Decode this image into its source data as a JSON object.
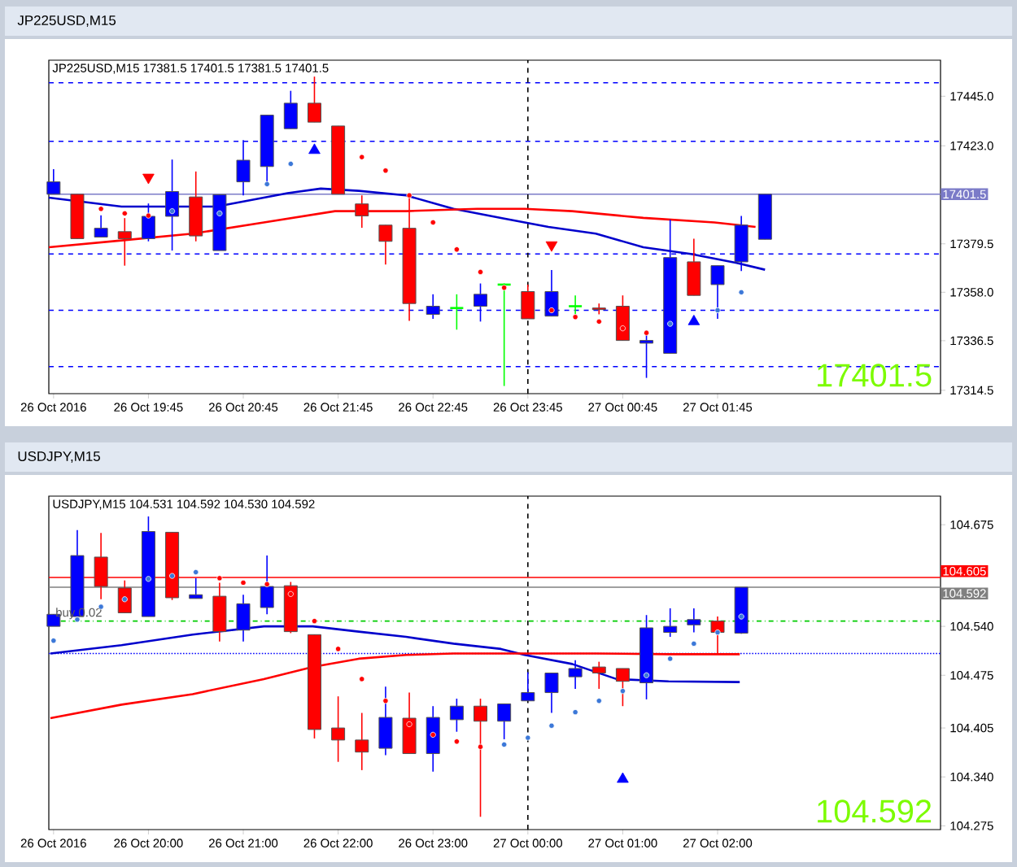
{
  "chart_data": [
    {
      "type": "candlestick",
      "title": "JP225USD,M15",
      "subtitle": "JP225USD,M15 17381.5 17401.5 17381.5 17401.5",
      "x": [
        "2016-10-26T18:45",
        "2016-10-26T19:00",
        "2016-10-26T19:15",
        "2016-10-26T19:30",
        "2016-10-26T19:45",
        "2016-10-26T20:00",
        "2016-10-26T20:15",
        "2016-10-26T20:30",
        "2016-10-26T20:45",
        "2016-10-26T21:00",
        "2016-10-26T21:15",
        "2016-10-26T21:30",
        "2016-10-26T21:45",
        "2016-10-26T22:00",
        "2016-10-26T22:15",
        "2016-10-26T22:30",
        "2016-10-26T22:45",
        "2016-10-26T23:00",
        "2016-10-26T23:15",
        "2016-10-26T23:30",
        "2016-10-26T23:45",
        "2016-10-27T00:00",
        "2016-10-27T00:15",
        "2016-10-27T00:30",
        "2016-10-27T00:45",
        "2016-10-27T01:00",
        "2016-10-27T01:15",
        "2016-10-27T01:30",
        "2016-10-27T01:45",
        "2016-10-27T02:00",
        "2016-10-27T02:15"
      ],
      "ohlc": [
        [
          17401.5,
          17412.6,
          17401.5,
          17407.0
        ],
        [
          17401.5,
          17401.5,
          17381.8,
          17381.8
        ],
        [
          17382.5,
          17392.1,
          17382.5,
          17386.4
        ],
        [
          17384.9,
          17390.9,
          17369.8,
          17381.8
        ],
        [
          17381.8,
          17397.4,
          17380.6,
          17391.7
        ],
        [
          17391.7,
          17416.9,
          17376.5,
          17402.7
        ],
        [
          17400.3,
          17411.6,
          17380.6,
          17383.0
        ],
        [
          17376.5,
          17401.3,
          17376.5,
          17401.3
        ],
        [
          17407.0,
          17425.5,
          17401.0,
          17416.6
        ],
        [
          17413.8,
          17436.6,
          17405.8,
          17436.6
        ],
        [
          17430.6,
          17447.4,
          17430.6,
          17441.9
        ],
        [
          17441.9,
          17453.7,
          17433.5,
          17433.5
        ],
        [
          17431.8,
          17431.8,
          17401.5,
          17401.5
        ],
        [
          17397.2,
          17401.0,
          17386.6,
          17391.9
        ],
        [
          17387.8,
          17387.8,
          17370.3,
          17380.6
        ],
        [
          17386.4,
          17401.0,
          17345.3,
          17353.0
        ],
        [
          17348.2,
          17357.1,
          17346.2,
          17351.8
        ],
        [
          17351.0,
          17357.1,
          17341.4,
          17351.0
        ],
        [
          17351.8,
          17361.9,
          17345.0,
          17357.1
        ],
        [
          17361.4,
          17361.9,
          17316.4,
          17361.4
        ],
        [
          17358.3,
          17361.4,
          17346.2,
          17346.2
        ],
        [
          17347.4,
          17367.9,
          17347.4,
          17358.3
        ],
        [
          17351.8,
          17356.6,
          17348.2,
          17351.8
        ],
        [
          17351.0,
          17353.0,
          17348.2,
          17350.3
        ],
        [
          17351.8,
          17356.6,
          17336.6,
          17336.6
        ],
        [
          17335.4,
          17341.0,
          17320.0,
          17336.6
        ],
        [
          17330.9,
          17390.2,
          17330.9,
          17373.4
        ],
        [
          17371.5,
          17381.8,
          17356.6,
          17356.6
        ],
        [
          17361.4,
          17369.8,
          17346.2,
          17369.8
        ],
        [
          17371.5,
          17391.9,
          17367.4,
          17387.8
        ],
        [
          17381.5,
          17401.5,
          17381.5,
          17401.5
        ]
      ],
      "colors": [
        "#0000ff",
        "#ff0000",
        "#0000ff",
        "#ff0000",
        "#0000ff",
        "#0000ff",
        "#ff0000",
        "#0000ff",
        "#0000ff",
        "#0000ff",
        "#0000ff",
        "#ff0000",
        "#ff0000",
        "#ff0000",
        "#ff0000",
        "#ff0000",
        "#0000ff",
        "#00ff00",
        "#0000ff",
        "#00ff00",
        "#ff0000",
        "#0000ff",
        "#00ff00",
        "#ff0000",
        "#ff0000",
        "#0000ff",
        "#0000ff",
        "#ff0000",
        "#0000ff",
        "#0000ff",
        "#0000ff"
      ],
      "series": [
        {
          "type": "line",
          "color": "#0000cc",
          "x": [
            "2016-10-26T18:42",
            "2016-10-26T19:28",
            "2016-10-26T19:58",
            "2016-10-26T20:28",
            "2016-10-26T20:43",
            "2016-10-26T21:13",
            "2016-10-26T21:34",
            "2016-10-26T21:58",
            "2016-10-26T22:28",
            "2016-10-26T22:58",
            "2016-10-26T23:28",
            "2016-10-26T23:58",
            "2016-10-27T00:28",
            "2016-10-27T00:58",
            "2016-10-27T01:28",
            "2016-10-27T01:57",
            "2016-10-27T02:15"
          ],
          "values": [
            17400,
            17396,
            17396,
            17396,
            17398,
            17402,
            17404,
            17403,
            17401,
            17395,
            17391,
            17387,
            17384,
            17378,
            17375,
            17371,
            17368
          ]
        },
        {
          "type": "line",
          "color": "#ff0000",
          "x": [
            "2016-10-26T18:42",
            "2016-10-26T19:28",
            "2016-10-26T20:13",
            "2016-10-26T20:58",
            "2016-10-26T21:43",
            "2016-10-26T22:28",
            "2016-10-26T23:13",
            "2016-10-26T23:43",
            "2016-10-27T00:13",
            "2016-10-27T00:58",
            "2016-10-27T01:43",
            "2016-10-27T02:09"
          ],
          "values": [
            17378,
            17381,
            17384,
            17389,
            17394,
            17394,
            17395,
            17395,
            17394,
            17391,
            17389,
            17387
          ]
        },
        {
          "type": "scatter",
          "marker": "circle",
          "color": "#3c78d8",
          "x": [
            "2016-10-26T20:00",
            "2016-10-26T20:30",
            "2016-10-26T21:00",
            "2016-10-26T21:15",
            "2016-10-27T01:15",
            "2016-10-27T01:45",
            "2016-10-27T02:00"
          ],
          "values": [
            17394,
            17393,
            17406,
            17415,
            17344,
            17350,
            17358
          ]
        },
        {
          "type": "scatter",
          "marker": "circle",
          "color": "#ff0000",
          "x": [
            "2016-10-26T19:15",
            "2016-10-26T19:30",
            "2016-10-26T19:45",
            "2016-10-26T22:00",
            "2016-10-26T22:15",
            "2016-10-26T22:30",
            "2016-10-26T22:45",
            "2016-10-26T23:00",
            "2016-10-26T23:15",
            "2016-10-26T23:30",
            "2016-10-27T00:00",
            "2016-10-27T00:15",
            "2016-10-27T00:30",
            "2016-10-27T00:45",
            "2016-10-27T01:00"
          ],
          "values": [
            17395,
            17393,
            17392,
            17418,
            17412,
            17401,
            17389,
            17377,
            17367,
            17360,
            17350,
            17347,
            17345,
            17342,
            17340
          ]
        },
        {
          "type": "scatter",
          "marker": "triangle",
          "color": "#ff0000",
          "x": [
            "2016-10-26T19:45",
            "2016-10-27T00:00"
          ],
          "values": [
            17409,
            17379
          ]
        },
        {
          "type": "scatter",
          "marker": "triangle",
          "color": "#0000ff",
          "x": [
            "2016-10-26T21:30",
            "2016-10-27T01:30"
          ],
          "values": [
            17421,
            17345
          ]
        }
      ],
      "ref_lines": [
        {
          "axis": "y",
          "value": 17401.5,
          "label": "17401.5",
          "color": "#7b7bc8"
        },
        {
          "axis": "y",
          "value": 17451,
          "color": "#0000ff",
          "line_style": "dashed"
        },
        {
          "axis": "y",
          "value": 17425,
          "color": "#0000ff",
          "line_style": "dashed"
        },
        {
          "axis": "y",
          "value": 17375,
          "color": "#0000ff",
          "line_style": "dashed"
        },
        {
          "axis": "y",
          "value": 17350,
          "color": "#0000ff",
          "line_style": "dashed"
        },
        {
          "axis": "y",
          "value": 17325,
          "color": "#0000ff",
          "line_style": "dashed"
        },
        {
          "axis": "x",
          "value": "2016-10-26T23:45",
          "color": "#000000",
          "line_style": "dashed"
        }
      ],
      "annotations": [
        "17401.5"
      ],
      "xlim": [
        "2016-10-26T18:42",
        "2016-10-27T04:06"
      ],
      "ylim": [
        17313,
        17461
      ],
      "xticks": [
        {
          "value": "2016-10-26T18:45",
          "label": "26 Oct 2016"
        },
        {
          "value": "2016-10-26T19:45",
          "label": "26 Oct 19:45"
        },
        {
          "value": "2016-10-26T20:45",
          "label": "26 Oct 20:45"
        },
        {
          "value": "2016-10-26T21:45",
          "label": "26 Oct 21:45"
        },
        {
          "value": "2016-10-26T22:45",
          "label": "26 Oct 22:45"
        },
        {
          "value": "2016-10-26T23:45",
          "label": "26 Oct 23:45"
        },
        {
          "value": "2016-10-27T00:45",
          "label": "27 Oct 00:45"
        },
        {
          "value": "2016-10-27T01:45",
          "label": "27 Oct 01:45"
        }
      ],
      "yticks": [
        {
          "value": 17445.0,
          "label": "17445.0"
        },
        {
          "value": 17423.0,
          "label": "17423.0"
        },
        {
          "value": 17379.5,
          "label": "17379.5"
        },
        {
          "value": 17358.0,
          "label": "17358.0"
        },
        {
          "value": 17336.5,
          "label": "17336.5"
        },
        {
          "value": 17314.5,
          "label": "17314.5"
        }
      ]
    },
    {
      "type": "candlestick",
      "title": "USDJPY,M15",
      "subtitle": "USDJPY,M15 104.531 104.592 104.530 104.592",
      "x": [
        "2016-10-26T19:00",
        "2016-10-26T19:15",
        "2016-10-26T19:30",
        "2016-10-26T19:45",
        "2016-10-26T20:00",
        "2016-10-26T20:15",
        "2016-10-26T20:30",
        "2016-10-26T20:45",
        "2016-10-26T21:00",
        "2016-10-26T21:15",
        "2016-10-26T21:30",
        "2016-10-26T21:45",
        "2016-10-26T22:00",
        "2016-10-26T22:15",
        "2016-10-26T22:30",
        "2016-10-26T22:45",
        "2016-10-26T23:00",
        "2016-10-26T23:15",
        "2016-10-26T23:30",
        "2016-10-26T23:45",
        "2016-10-27T00:00",
        "2016-10-27T00:15",
        "2016-10-27T00:30",
        "2016-10-27T00:45",
        "2016-10-27T01:00",
        "2016-10-27T01:15",
        "2016-10-27T01:30",
        "2016-10-27T01:45",
        "2016-10-27T02:00",
        "2016-10-27T02:15"
      ],
      "ohlc": [
        [
          104.54,
          104.556,
          104.54,
          104.556
        ],
        [
          104.553,
          104.668,
          104.553,
          104.634
        ],
        [
          104.632,
          104.664,
          104.576,
          104.593
        ],
        [
          104.591,
          104.601,
          104.558,
          104.558
        ],
        [
          104.553,
          104.686,
          104.553,
          104.666
        ],
        [
          104.665,
          104.665,
          104.575,
          104.578
        ],
        [
          104.577,
          104.604,
          104.577,
          104.582
        ],
        [
          104.58,
          104.598,
          104.52,
          104.533
        ],
        [
          104.535,
          104.582,
          104.52,
          104.57
        ],
        [
          104.565,
          104.634,
          104.556,
          104.593
        ],
        [
          104.594,
          104.599,
          104.531,
          104.533
        ],
        [
          104.529,
          104.529,
          104.391,
          104.403
        ],
        [
          104.405,
          104.447,
          104.36,
          104.389
        ],
        [
          104.389,
          104.425,
          104.349,
          104.373
        ],
        [
          104.378,
          104.46,
          104.369,
          104.419
        ],
        [
          104.418,
          104.452,
          104.371,
          104.371
        ],
        [
          104.371,
          104.434,
          104.347,
          104.419
        ],
        [
          104.416,
          104.444,
          104.4,
          104.434
        ],
        [
          104.434,
          104.444,
          104.287,
          104.414
        ],
        [
          104.414,
          104.437,
          104.39,
          104.437
        ],
        [
          104.441,
          104.479,
          104.441,
          104.452
        ],
        [
          104.452,
          104.478,
          104.425,
          104.478
        ],
        [
          104.473,
          104.495,
          104.457,
          104.484
        ],
        [
          104.486,
          104.493,
          104.457,
          104.478
        ],
        [
          104.484,
          104.484,
          104.434,
          104.467
        ],
        [
          104.465,
          104.555,
          104.443,
          104.538
        ],
        [
          104.532,
          104.564,
          104.526,
          104.54
        ],
        [
          104.542,
          104.564,
          104.532,
          104.549
        ],
        [
          104.547,
          104.553,
          104.504,
          104.532
        ],
        [
          104.531,
          104.592,
          104.53,
          104.592
        ]
      ],
      "colors": [
        "#0000ff",
        "#0000ff",
        "#ff0000",
        "#ff0000",
        "#0000ff",
        "#ff0000",
        "#0000ff",
        "#ff0000",
        "#0000ff",
        "#0000ff",
        "#ff0000",
        "#ff0000",
        "#ff0000",
        "#ff0000",
        "#0000ff",
        "#ff0000",
        "#0000ff",
        "#0000ff",
        "#ff0000",
        "#0000ff",
        "#0000ff",
        "#0000ff",
        "#0000ff",
        "#ff0000",
        "#ff0000",
        "#0000ff",
        "#0000ff",
        "#0000ff",
        "#ff0000",
        "#0000ff"
      ],
      "series": [
        {
          "type": "line",
          "color": "#0000cc",
          "x": [
            "2016-10-26T18:58",
            "2016-10-26T19:43",
            "2016-10-26T20:28",
            "2016-10-26T21:13",
            "2016-10-26T21:44",
            "2016-10-26T22:13",
            "2016-10-26T22:43",
            "2016-10-26T23:13",
            "2016-10-26T23:43",
            "2016-10-26T23:58",
            "2016-10-27T00:28",
            "2016-10-27T00:56",
            "2016-10-27T01:29",
            "2016-10-27T02:14"
          ],
          "values": [
            104.504,
            104.515,
            104.529,
            104.54,
            104.54,
            104.533,
            104.526,
            104.517,
            104.51,
            104.502,
            104.49,
            104.47,
            104.467,
            104.466
          ]
        },
        {
          "type": "line",
          "color": "#ff0000",
          "x": [
            "2016-10-26T18:58",
            "2016-10-26T19:43",
            "2016-10-26T20:28",
            "2016-10-26T21:13",
            "2016-10-26T21:44",
            "2016-10-26T22:13",
            "2016-10-26T22:43",
            "2016-10-26T23:13",
            "2016-10-26T23:58",
            "2016-10-27T00:43",
            "2016-10-27T01:29",
            "2016-10-27T02:14"
          ],
          "values": [
            104.418,
            104.436,
            104.45,
            104.47,
            104.486,
            104.497,
            104.502,
            104.504,
            104.504,
            104.504,
            104.503,
            104.503
          ]
        },
        {
          "type": "scatter",
          "marker": "circle",
          "color": "#3c78d8",
          "x": [
            "2016-10-26T19:00",
            "2016-10-26T19:15",
            "2016-10-26T19:30",
            "2016-10-26T19:45",
            "2016-10-26T20:00",
            "2016-10-26T20:15",
            "2016-10-26T20:30",
            "2016-10-26T23:45",
            "2016-10-27T00:00",
            "2016-10-27T00:15",
            "2016-10-27T00:30",
            "2016-10-27T00:45",
            "2016-10-27T01:00",
            "2016-10-27T01:15",
            "2016-10-27T01:30",
            "2016-10-27T01:45",
            "2016-10-27T02:00",
            "2016-10-27T02:15"
          ],
          "values": [
            104.521,
            104.549,
            104.566,
            104.576,
            104.603,
            104.607,
            104.612,
            104.383,
            104.392,
            104.408,
            104.426,
            104.441,
            104.454,
            104.475,
            104.497,
            104.517,
            104.532,
            104.553
          ]
        },
        {
          "type": "scatter",
          "marker": "circle",
          "color": "#ff0000",
          "x": [
            "2016-10-26T20:45",
            "2016-10-26T21:00",
            "2016-10-26T21:15",
            "2016-10-26T21:30",
            "2016-10-26T21:45",
            "2016-10-26T22:00",
            "2016-10-26T22:15",
            "2016-10-26T22:30",
            "2016-10-26T22:45",
            "2016-10-26T23:00",
            "2016-10-26T23:15",
            "2016-10-26T23:30"
          ],
          "values": [
            104.604,
            104.598,
            104.596,
            104.583,
            104.547,
            104.51,
            104.47,
            104.441,
            104.41,
            104.396,
            104.387,
            104.38
          ]
        },
        {
          "type": "scatter",
          "marker": "triangle",
          "color": "#0000ff",
          "x": [
            "2016-10-27T01:00"
          ],
          "values": [
            104.337
          ]
        }
      ],
      "ref_lines": [
        {
          "axis": "y",
          "value": 104.605,
          "label": "104.605",
          "color": "#ff0000"
        },
        {
          "axis": "y",
          "value": 104.592,
          "label": "104.592",
          "color": "#808080"
        },
        {
          "axis": "y",
          "value": 104.547,
          "color": "#00cc00",
          "line_style": "dashdot"
        },
        {
          "axis": "y",
          "value": 104.504,
          "color": "#0000ff",
          "line_style": "dotted"
        },
        {
          "axis": "x",
          "value": "2016-10-27T00:00",
          "color": "#000000",
          "line_style": "dashed"
        }
      ],
      "annotations": [
        "104.592",
        {
          "text": "buy 0.02",
          "x": "2016-10-26T19:00",
          "y": 104.547
        }
      ],
      "xlim": [
        "2016-10-26T18:57",
        "2016-10-27T04:21"
      ],
      "ylim": [
        104.27,
        104.713
      ],
      "xticks": [
        {
          "value": "2016-10-26T19:00",
          "label": "26 Oct 2016"
        },
        {
          "value": "2016-10-26T20:00",
          "label": "26 Oct 20:00"
        },
        {
          "value": "2016-10-26T21:00",
          "label": "26 Oct 21:00"
        },
        {
          "value": "2016-10-26T22:00",
          "label": "26 Oct 22:00"
        },
        {
          "value": "2016-10-26T23:00",
          "label": "26 Oct 23:00"
        },
        {
          "value": "2016-10-27T00:00",
          "label": "27 Oct 00:00"
        },
        {
          "value": "2016-10-27T01:00",
          "label": "27 Oct 01:00"
        },
        {
          "value": "2016-10-27T02:00",
          "label": "27 Oct 02:00"
        }
      ],
      "yticks": [
        {
          "value": 104.675,
          "label": "104.675"
        },
        {
          "value": 104.54,
          "label": "104.540"
        },
        {
          "value": 104.475,
          "label": "104.475"
        },
        {
          "value": 104.405,
          "label": "104.405"
        },
        {
          "value": 104.34,
          "label": "104.340"
        },
        {
          "value": 104.275,
          "label": "104.275"
        }
      ]
    }
  ]
}
